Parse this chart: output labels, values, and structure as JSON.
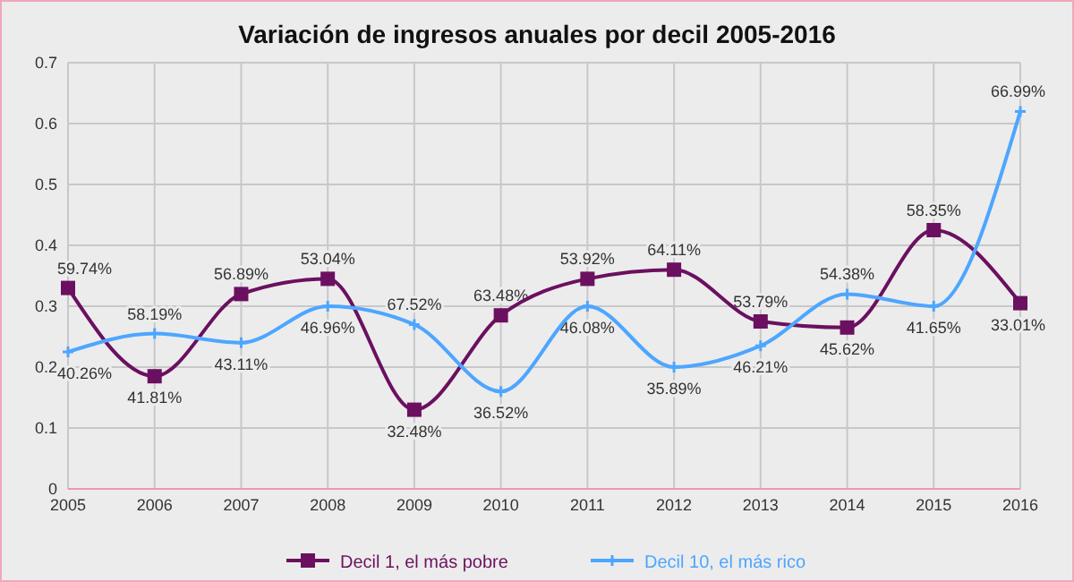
{
  "chart_data": {
    "type": "line",
    "title": "Variación de ingresos anuales por decil 2005-2016",
    "x": [
      2005,
      2006,
      2007,
      2008,
      2009,
      2010,
      2011,
      2012,
      2013,
      2014,
      2015,
      2016
    ],
    "xlim": [
      2005,
      2016
    ],
    "xticks": [
      2005,
      2006,
      2007,
      2008,
      2009,
      2010,
      2011,
      2012,
      2013,
      2014,
      2015,
      2016
    ],
    "ylim": [
      0,
      0.7
    ],
    "yticks": [
      0,
      0.1,
      0.2,
      0.3,
      0.4,
      0.5,
      0.6,
      0.7
    ],
    "grid": true,
    "legend": "bottom",
    "series": [
      {
        "name": "Decil 1, el más pobre",
        "color": "#6b1060",
        "marker": "square",
        "values": [
          0.33,
          0.185,
          0.32,
          0.345,
          0.13,
          0.285,
          0.345,
          0.36,
          0.275,
          0.265,
          0.425,
          0.305
        ]
      },
      {
        "name": "Decil 10, el más rico",
        "color": "#4da6ff",
        "marker": "cross",
        "values": [
          0.225,
          0.255,
          0.24,
          0.3,
          0.27,
          0.16,
          0.3,
          0.2,
          0.235,
          0.32,
          0.3,
          0.62
        ]
      }
    ],
    "annotations": [
      {
        "text": "59.74%",
        "x": 2005,
        "y": 0.33
      },
      {
        "text": "41.81%",
        "x": 2006,
        "y": 0.185
      },
      {
        "text": "56.89%",
        "x": 2007,
        "y": 0.32
      },
      {
        "text": "53.04%",
        "x": 2008,
        "y": 0.345
      },
      {
        "text": "32.48%",
        "x": 2009,
        "y": 0.13
      },
      {
        "text": "63.48%",
        "x": 2010,
        "y": 0.285
      },
      {
        "text": "53.92%",
        "x": 2011,
        "y": 0.345
      },
      {
        "text": "64.11%",
        "x": 2012,
        "y": 0.36
      },
      {
        "text": "53.79%",
        "x": 2013,
        "y": 0.275
      },
      {
        "text": "45.62%",
        "x": 2014,
        "y": 0.265
      },
      {
        "text": "58.35%",
        "x": 2015,
        "y": 0.425
      },
      {
        "text": "33.01%",
        "x": 2016,
        "y": 0.305
      },
      {
        "text": "40.26%",
        "x": 2005,
        "y": 0.225
      },
      {
        "text": "58.19%",
        "x": 2006,
        "y": 0.255
      },
      {
        "text": "43.11%",
        "x": 2007,
        "y": 0.24
      },
      {
        "text": "46.96%",
        "x": 2008,
        "y": 0.3
      },
      {
        "text": "67.52%",
        "x": 2009,
        "y": 0.27
      },
      {
        "text": "36.52%",
        "x": 2010,
        "y": 0.16
      },
      {
        "text": "46.08%",
        "x": 2011,
        "y": 0.3
      },
      {
        "text": "35.89%",
        "x": 2012,
        "y": 0.2
      },
      {
        "text": "46.21%",
        "x": 2013,
        "y": 0.235
      },
      {
        "text": "54.38%",
        "x": 2014,
        "y": 0.32
      },
      {
        "text": "41.65%",
        "x": 2015,
        "y": 0.3
      },
      {
        "text": "66.99%",
        "x": 2016,
        "y": 0.62
      }
    ]
  }
}
